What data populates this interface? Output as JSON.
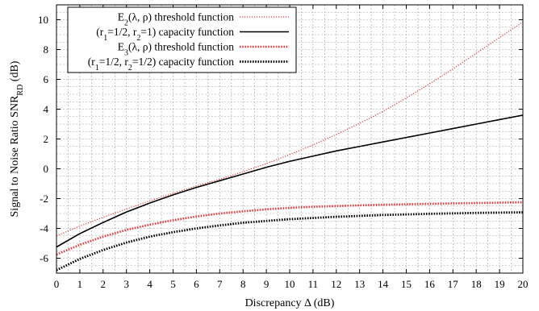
{
  "chart_data": {
    "type": "line",
    "xlabel": "Discrepancy Δ (dB)",
    "ylabel": "Signal to Noise Ratio SNR",
    "ylabel_sub": "RD",
    "ylabel_unit": "(dB)",
    "xlim": [
      0,
      20
    ],
    "ylim": [
      -7,
      11
    ],
    "xticks": [
      0,
      1,
      2,
      3,
      4,
      5,
      6,
      7,
      8,
      9,
      10,
      11,
      12,
      13,
      14,
      15,
      16,
      17,
      18,
      19,
      20
    ],
    "xtick_labels": [
      "0",
      "1",
      "2",
      "3",
      "4",
      "5",
      "6",
      "7",
      "8",
      "9",
      "10",
      "11",
      "12",
      "13",
      "14",
      "15",
      "16",
      "17",
      "18",
      "19",
      "20"
    ],
    "yticks": [
      -6,
      -4,
      -2,
      0,
      2,
      4,
      6,
      8,
      10
    ],
    "ytick_labels": [
      "-6",
      "-4",
      "-2",
      "0",
      "2",
      "4",
      "6",
      "8",
      "10"
    ],
    "grid": true,
    "legend_position": "top-left",
    "x": [
      0,
      1,
      2,
      3,
      4,
      5,
      6,
      7,
      8,
      9,
      10,
      11,
      12,
      13,
      14,
      15,
      16,
      17,
      18,
      19,
      20
    ],
    "series": [
      {
        "name": "E2(λ, ρ) threshold function",
        "legend": {
          "base": "E",
          "sub": "2",
          "rest": "(λ, ρ) threshold function"
        },
        "color": "#e8383b",
        "style": "dotted-thin",
        "values": [
          -4.5,
          -3.85,
          -3.25,
          -2.7,
          -2.15,
          -1.65,
          -1.15,
          -0.7,
          -0.2,
          0.35,
          0.95,
          1.6,
          2.3,
          3.05,
          3.85,
          4.75,
          5.7,
          6.7,
          7.75,
          8.8,
          9.85
        ]
      },
      {
        "name": "(r1=1/2, r2=1) capacity function",
        "legend": {
          "p1": "(r",
          "s1": "1",
          "p2": "=1/2, r",
          "s2": "2",
          "p3": "=1) capacity function"
        },
        "color": "#000000",
        "style": "solid",
        "values": [
          -5.25,
          -4.35,
          -3.6,
          -2.9,
          -2.3,
          -1.75,
          -1.25,
          -0.8,
          -0.35,
          0.1,
          0.5,
          0.85,
          1.2,
          1.5,
          1.8,
          2.1,
          2.4,
          2.7,
          3.0,
          3.3,
          3.6
        ]
      },
      {
        "name": "E3(λ, ρ) threshold function",
        "legend": {
          "base": "E",
          "sub": "3",
          "rest": "(λ, ρ) threshold function"
        },
        "color": "#e8383b",
        "style": "dotted-thick",
        "values": [
          -5.75,
          -5.1,
          -4.55,
          -4.1,
          -3.75,
          -3.45,
          -3.2,
          -3.0,
          -2.85,
          -2.72,
          -2.62,
          -2.55,
          -2.5,
          -2.45,
          -2.41,
          -2.38,
          -2.35,
          -2.32,
          -2.3,
          -2.27,
          -2.25
        ]
      },
      {
        "name": "(r1=1/2, r2=1/2) capacity function",
        "legend": {
          "p1": "(r",
          "s1": "1",
          "p2": "=1/2, r",
          "s2": "2",
          "p3": "=1/2) capacity function"
        },
        "color": "#000000",
        "style": "dotted-black",
        "values": [
          -6.8,
          -6.05,
          -5.45,
          -4.95,
          -4.55,
          -4.25,
          -4.0,
          -3.8,
          -3.62,
          -3.5,
          -3.38,
          -3.3,
          -3.22,
          -3.16,
          -3.1,
          -3.06,
          -3.02,
          -2.99,
          -2.96,
          -2.94,
          -2.92
        ]
      }
    ]
  }
}
